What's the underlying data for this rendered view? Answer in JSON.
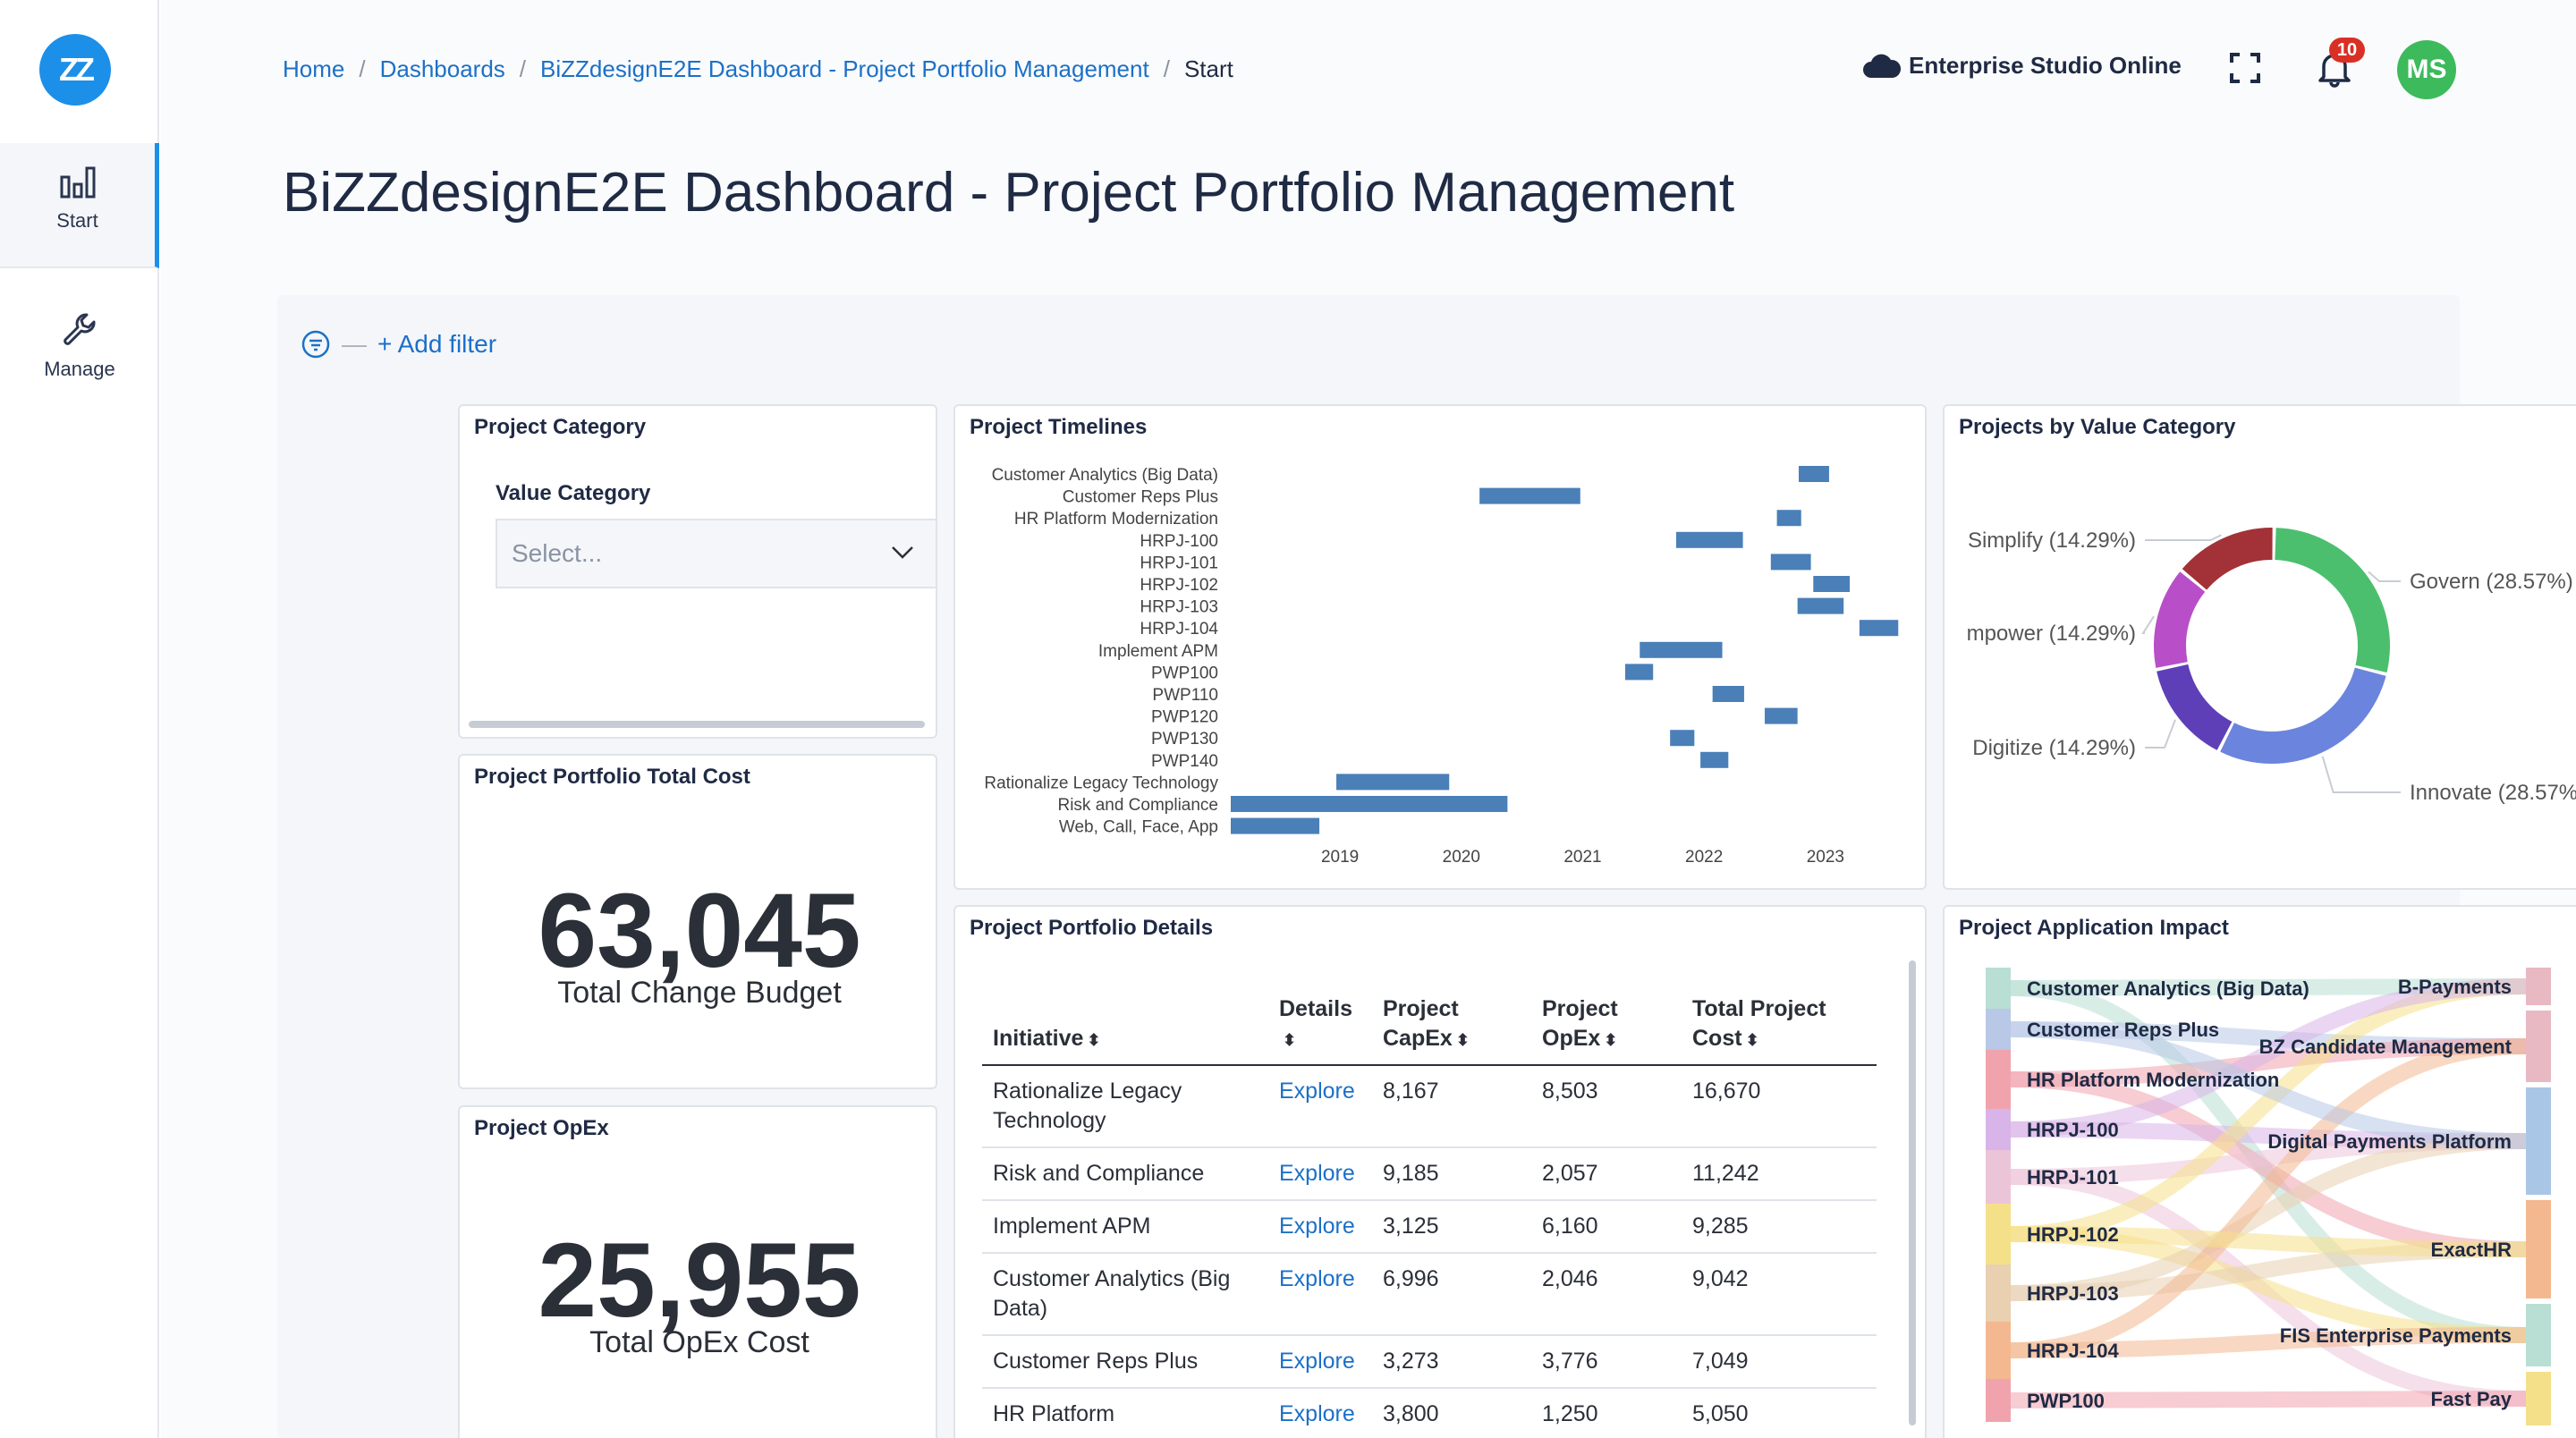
{
  "sidebar": {
    "logo_text": "ZZ",
    "items": [
      {
        "label": "Start",
        "icon": "bar-chart-icon",
        "active": true
      },
      {
        "label": "Manage",
        "icon": "wrench-icon",
        "active": false
      }
    ]
  },
  "breadcrumb": {
    "items": [
      "Home",
      "Dashboards",
      "BiZZdesignE2E Dashboard - Project Portfolio Management"
    ],
    "current": "Start"
  },
  "header": {
    "studio_label": "Enterprise Studio Online",
    "notification_count": "10",
    "avatar_initials": "MS"
  },
  "page_title": "BiZZdesignE2E Dashboard - Project Portfolio Management",
  "filter": {
    "add_label": "+ Add filter"
  },
  "category_card": {
    "title": "Project Category",
    "field_label": "Value Category",
    "placeholder": "Select..."
  },
  "total_cost_card": {
    "title": "Project Portfolio Total Cost",
    "value": "63,045",
    "label": "Total Change Budget"
  },
  "opex_card": {
    "title": "Project OpEx",
    "value": "25,955",
    "label": "Total OpEx Cost"
  },
  "timelines_card": {
    "title": "Project Timelines"
  },
  "value_card": {
    "title": "Projects by Value Category"
  },
  "details_card": {
    "title": "Project Portfolio Details",
    "columns": [
      "Initiative",
      "Details",
      "Project CapEx",
      "Project OpEx",
      "Total Project Cost"
    ],
    "rows": [
      [
        "Rationalize Legacy Technology",
        "Explore",
        "8,167",
        "8,503",
        "16,670"
      ],
      [
        "Risk and Compliance",
        "Explore",
        "9,185",
        "2,057",
        "11,242"
      ],
      [
        "Implement APM",
        "Explore",
        "3,125",
        "6,160",
        "9,285"
      ],
      [
        "Customer Analytics (Big Data)",
        "Explore",
        "6,996",
        "2,046",
        "9,042"
      ],
      [
        "Customer Reps Plus",
        "Explore",
        "3,273",
        "3,776",
        "7,049"
      ],
      [
        "HR Platform",
        "Explore",
        "3,800",
        "1,250",
        "5,050"
      ]
    ]
  },
  "impact_card": {
    "title": "Project Application Impact",
    "left_nodes": [
      "Customer Analytics (Big Data)",
      "Customer Reps Plus",
      "HR Platform Modernization",
      "HRPJ-100",
      "HRPJ-101",
      "HRPJ-102",
      "HRPJ-103",
      "HRPJ-104",
      "PWP100"
    ],
    "right_nodes": [
      "B-Payments",
      "BZ Candidate Management",
      "Digital Payments Platform",
      "ExactHR",
      "FIS Enterprise Payments",
      "Fast Pay"
    ],
    "left_colors": [
      "#b9ded4",
      "#b8c8e6",
      "#f1a3ad",
      "#d8b4e8",
      "#ecc4d8",
      "#f5e08a",
      "#e8d0b0",
      "#f3b88f",
      "#f1a3ad"
    ],
    "right_colors": [
      "#e8b9c3",
      "#e8b9c3",
      "#a9c6e6",
      "#f3b88f",
      "#b9ded4",
      "#f5e08a"
    ]
  },
  "chart_data": [
    {
      "type": "timeline",
      "title": "Project Timelines",
      "categories": [
        "Customer Analytics (Big Data)",
        "Customer Reps Plus",
        "HR Platform Modernization",
        "HRPJ-100",
        "HRPJ-101",
        "HRPJ-102",
        "HRPJ-103",
        "HRPJ-104",
        "Implement APM",
        "PWP100",
        "PWP110",
        "PWP120",
        "PWP130",
        "PWP140",
        "Rationalize Legacy Technology",
        "Risk and Compliance",
        "Web, Call, Face, App"
      ],
      "x_ticks": [
        "2019",
        "2020",
        "2021",
        "2022",
        "2023"
      ],
      "xlim": [
        2018.1,
        2023.2
      ],
      "series": [
        {
          "values": [
            [
              2022.78,
              2023.03
            ],
            [
              2020.15,
              2020.98
            ],
            [
              2022.6,
              2022.8
            ],
            [
              2021.77,
              2022.32
            ],
            [
              2022.55,
              2022.88
            ],
            [
              2022.9,
              2023.2
            ],
            [
              2022.77,
              2023.15
            ],
            [
              2023.28,
              2023.6
            ],
            [
              2021.47,
              2022.15
            ],
            [
              2021.35,
              2021.58
            ],
            [
              2022.07,
              2022.33
            ],
            [
              2022.5,
              2022.77
            ],
            [
              2021.72,
              2021.92
            ],
            [
              2021.97,
              2022.2
            ],
            [
              2018.97,
              2019.9
            ],
            [
              2018.1,
              2020.38
            ],
            [
              2018.1,
              2018.83
            ]
          ]
        }
      ],
      "grid": false
    },
    {
      "type": "pie",
      "title": "Projects by Value Category",
      "categories": [
        "Govern (28.57%)",
        "Innovate (28.57%",
        "Digitize (14.29%)",
        "mpower (14.29%)",
        "Simplify (14.29%)"
      ],
      "values": [
        28.57,
        28.57,
        14.29,
        14.29,
        14.29
      ],
      "colors": [
        "#4cbf6e",
        "#6b84dd",
        "#5e3fb8",
        "#b84fc8",
        "#a23237"
      ]
    }
  ]
}
